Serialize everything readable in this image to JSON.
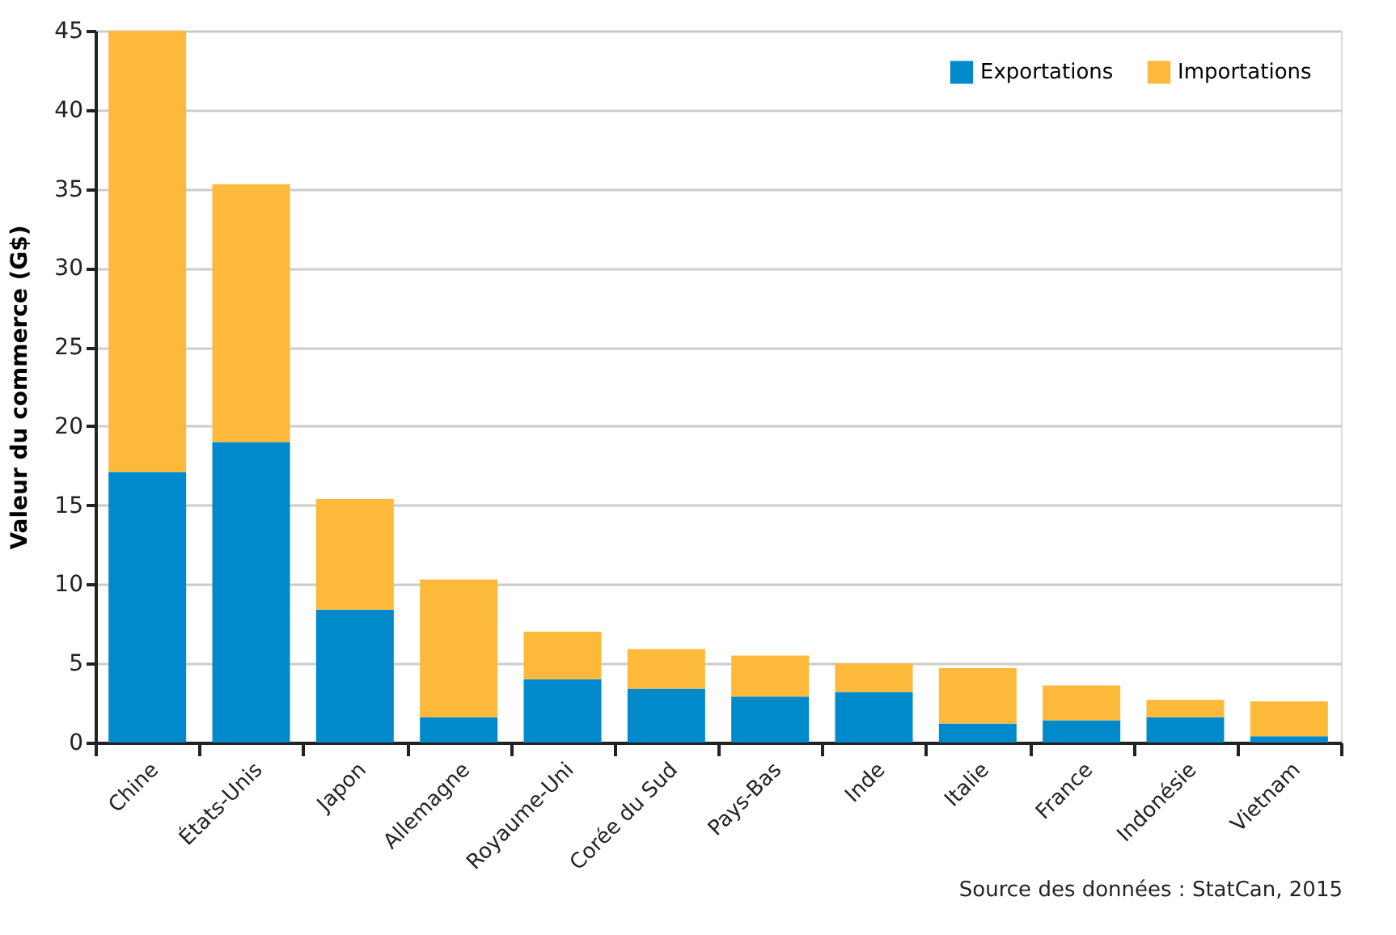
{
  "chart_data": {
    "type": "bar",
    "stacked": true,
    "ylabel": "Valeur du commerce (G$)",
    "categories": [
      "Chine",
      "États-Unis",
      "Japon",
      "Allemagne",
      "Royaume-Uni",
      "Corée du Sud",
      "Pays-Bas",
      "Inde",
      "Italie",
      "France",
      "Indonésie",
      "Vietnam"
    ],
    "series": [
      {
        "name": "Exportations",
        "color": "#008acb",
        "values": [
          17.1,
          19.0,
          8.4,
          1.6,
          4.0,
          3.4,
          2.9,
          3.2,
          1.2,
          1.4,
          1.6,
          0.4
        ]
      },
      {
        "name": "Importations",
        "color": "#fdb939",
        "values": [
          27.9,
          16.3,
          7.0,
          8.7,
          3.0,
          2.5,
          2.6,
          1.8,
          3.5,
          2.2,
          1.1,
          2.2
        ]
      }
    ],
    "ylim": [
      0,
      45
    ],
    "yticks": [
      0,
      5,
      10,
      15,
      20,
      25,
      30,
      35,
      40,
      45
    ],
    "grid": "y",
    "legend": "top right",
    "annotations": [
      "Source des données : StatCan, 2015"
    ]
  }
}
